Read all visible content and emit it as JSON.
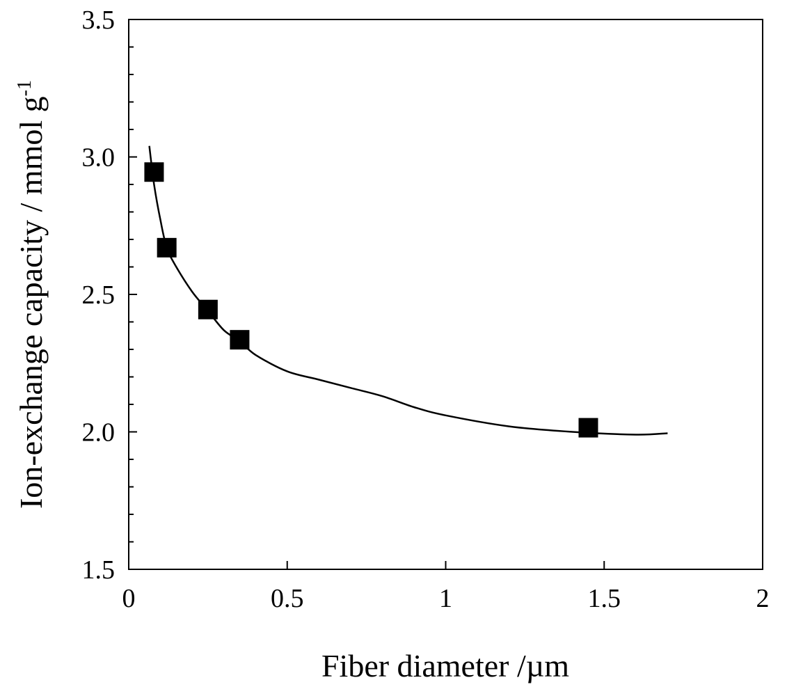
{
  "chart_data": {
    "type": "scatter",
    "title": "",
    "xlabel": "Fiber diameter /µm",
    "ylabel": "Ion-exchange capacity / mmol g",
    "ylabel_superscript": "-1",
    "xlim": [
      0,
      2
    ],
    "ylim": [
      1.5,
      3.5
    ],
    "x_ticks": [
      "0",
      "0.5",
      "1",
      "1.5",
      "2"
    ],
    "y_ticks": [
      "1.5",
      "2.0",
      "2.5",
      "3.0",
      "3.5"
    ],
    "grid": false,
    "legend": "none",
    "series": [
      {
        "marker": "square",
        "color": "#000000",
        "points": [
          {
            "x": 0.08,
            "y": 2.945
          },
          {
            "x": 0.12,
            "y": 2.67
          },
          {
            "x": 0.25,
            "y": 2.445
          },
          {
            "x": 0.35,
            "y": 2.335
          },
          {
            "x": 1.45,
            "y": 2.015
          }
        ]
      }
    ],
    "trend_curve": {
      "color": "#000000",
      "points": [
        [
          0.065,
          3.04
        ],
        [
          0.08,
          2.9
        ],
        [
          0.1,
          2.77
        ],
        [
          0.12,
          2.67
        ],
        [
          0.15,
          2.6
        ],
        [
          0.2,
          2.51
        ],
        [
          0.25,
          2.44
        ],
        [
          0.3,
          2.37
        ],
        [
          0.35,
          2.33
        ],
        [
          0.4,
          2.28
        ],
        [
          0.5,
          2.22
        ],
        [
          0.6,
          2.19
        ],
        [
          0.7,
          2.16
        ],
        [
          0.8,
          2.13
        ],
        [
          0.9,
          2.09
        ],
        [
          1.0,
          2.06
        ],
        [
          1.2,
          2.02
        ],
        [
          1.4,
          2.0
        ],
        [
          1.6,
          1.99
        ],
        [
          1.7,
          1.995
        ]
      ]
    }
  }
}
